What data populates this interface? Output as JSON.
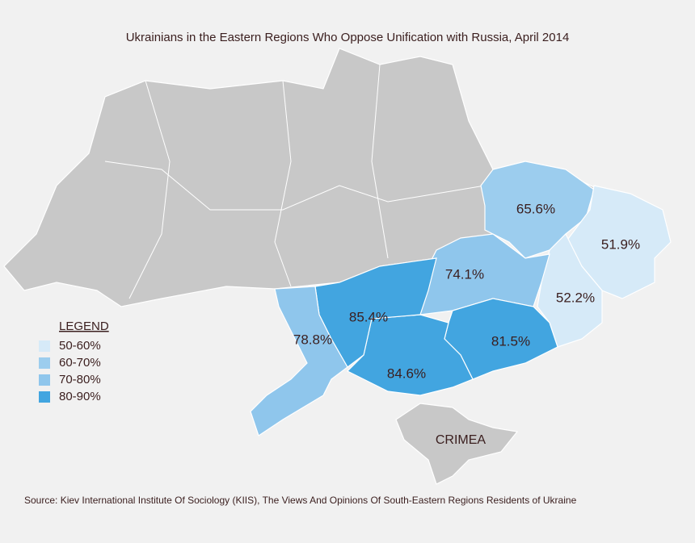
{
  "title": "Ukrainians in the Eastern Regions Who Oppose Unification with Russia, April 2014",
  "regions": [
    {
      "value": 65.6,
      "label": "65.6%",
      "color": "#9ccdee"
    },
    {
      "value": 51.9,
      "label": "51.9%",
      "color": "#d6eaf8"
    },
    {
      "value": 52.2,
      "label": "52.2%",
      "color": "#d6eaf8"
    },
    {
      "value": 74.1,
      "label": "74.1%",
      "color": "#8fc6ec"
    },
    {
      "value": 81.5,
      "label": "81.5%",
      "color": "#42a5e0"
    },
    {
      "value": 84.6,
      "label": "84.6%",
      "color": "#42a5e0"
    },
    {
      "value": 85.4,
      "label": "85.4%",
      "color": "#42a5e0"
    },
    {
      "value": 78.8,
      "label": "78.8%",
      "color": "#8fc6ec"
    }
  ],
  "legend": {
    "title": "LEGEND",
    "items": [
      {
        "label": "50-60%",
        "color": "#d6eaf8"
      },
      {
        "label": "60-70%",
        "color": "#9ccdee"
      },
      {
        "label": "70-80%",
        "color": "#8fc6ec"
      },
      {
        "label": "80-90%",
        "color": "#42a5e0"
      }
    ]
  },
  "annotation": "CRIMEA",
  "source": "Source: Kiev International Institute Of Sociology (KIIS), The Views And Opinions Of South-Eastern Regions Residents of Ukraine"
}
